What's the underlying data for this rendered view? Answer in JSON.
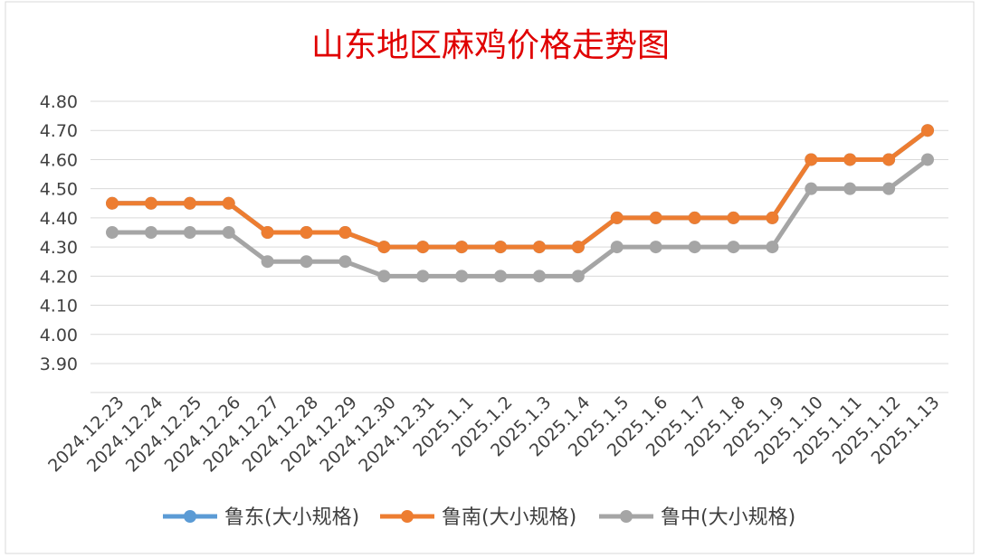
{
  "chart_data": {
    "type": "line",
    "title": "山东地区麻鸡价格走势图",
    "title_color": "#e00000",
    "categories": [
      "2024.12.23",
      "2024.12.24",
      "2024.12.25",
      "2024.12.26",
      "2024.12.27",
      "2024.12.28",
      "2024.12.29",
      "2024.12.30",
      "2024.12.31",
      "2025.1.1",
      "2025.1.2",
      "2025.1.3",
      "2025.1.4",
      "2025.1.5",
      "2025.1.6",
      "2025.1.7",
      "2025.1.8",
      "2025.1.9",
      "2025.1.10",
      "2025.1.11",
      "2025.1.12",
      "2025.1.13"
    ],
    "y_ticks": [
      "4.80",
      "4.70",
      "4.60",
      "4.50",
      "4.40",
      "4.30",
      "4.20",
      "4.10",
      "4.00",
      "3.90"
    ],
    "ylim": [
      3.9,
      4.8
    ],
    "grid": true,
    "legend_position": "bottom",
    "series": [
      {
        "name": "鲁东(大小规格)",
        "color": "#5b9bd5",
        "values": [
          4.45,
          4.45,
          4.45,
          4.45,
          4.35,
          4.35,
          4.35,
          4.3,
          4.3,
          4.3,
          4.3,
          4.3,
          4.3,
          4.4,
          4.4,
          4.4,
          4.4,
          4.4,
          4.6,
          4.6,
          4.6,
          4.7
        ]
      },
      {
        "name": "鲁南(大小规格)",
        "color": "#ed7d31",
        "values": [
          4.45,
          4.45,
          4.45,
          4.45,
          4.35,
          4.35,
          4.35,
          4.3,
          4.3,
          4.3,
          4.3,
          4.3,
          4.3,
          4.4,
          4.4,
          4.4,
          4.4,
          4.4,
          4.6,
          4.6,
          4.6,
          4.7
        ]
      },
      {
        "name": "鲁中(大小规格)",
        "color": "#a5a5a5",
        "values": [
          4.35,
          4.35,
          4.35,
          4.35,
          4.25,
          4.25,
          4.25,
          4.2,
          4.2,
          4.2,
          4.2,
          4.2,
          4.2,
          4.3,
          4.3,
          4.3,
          4.3,
          4.3,
          4.5,
          4.5,
          4.5,
          4.6
        ]
      }
    ]
  }
}
